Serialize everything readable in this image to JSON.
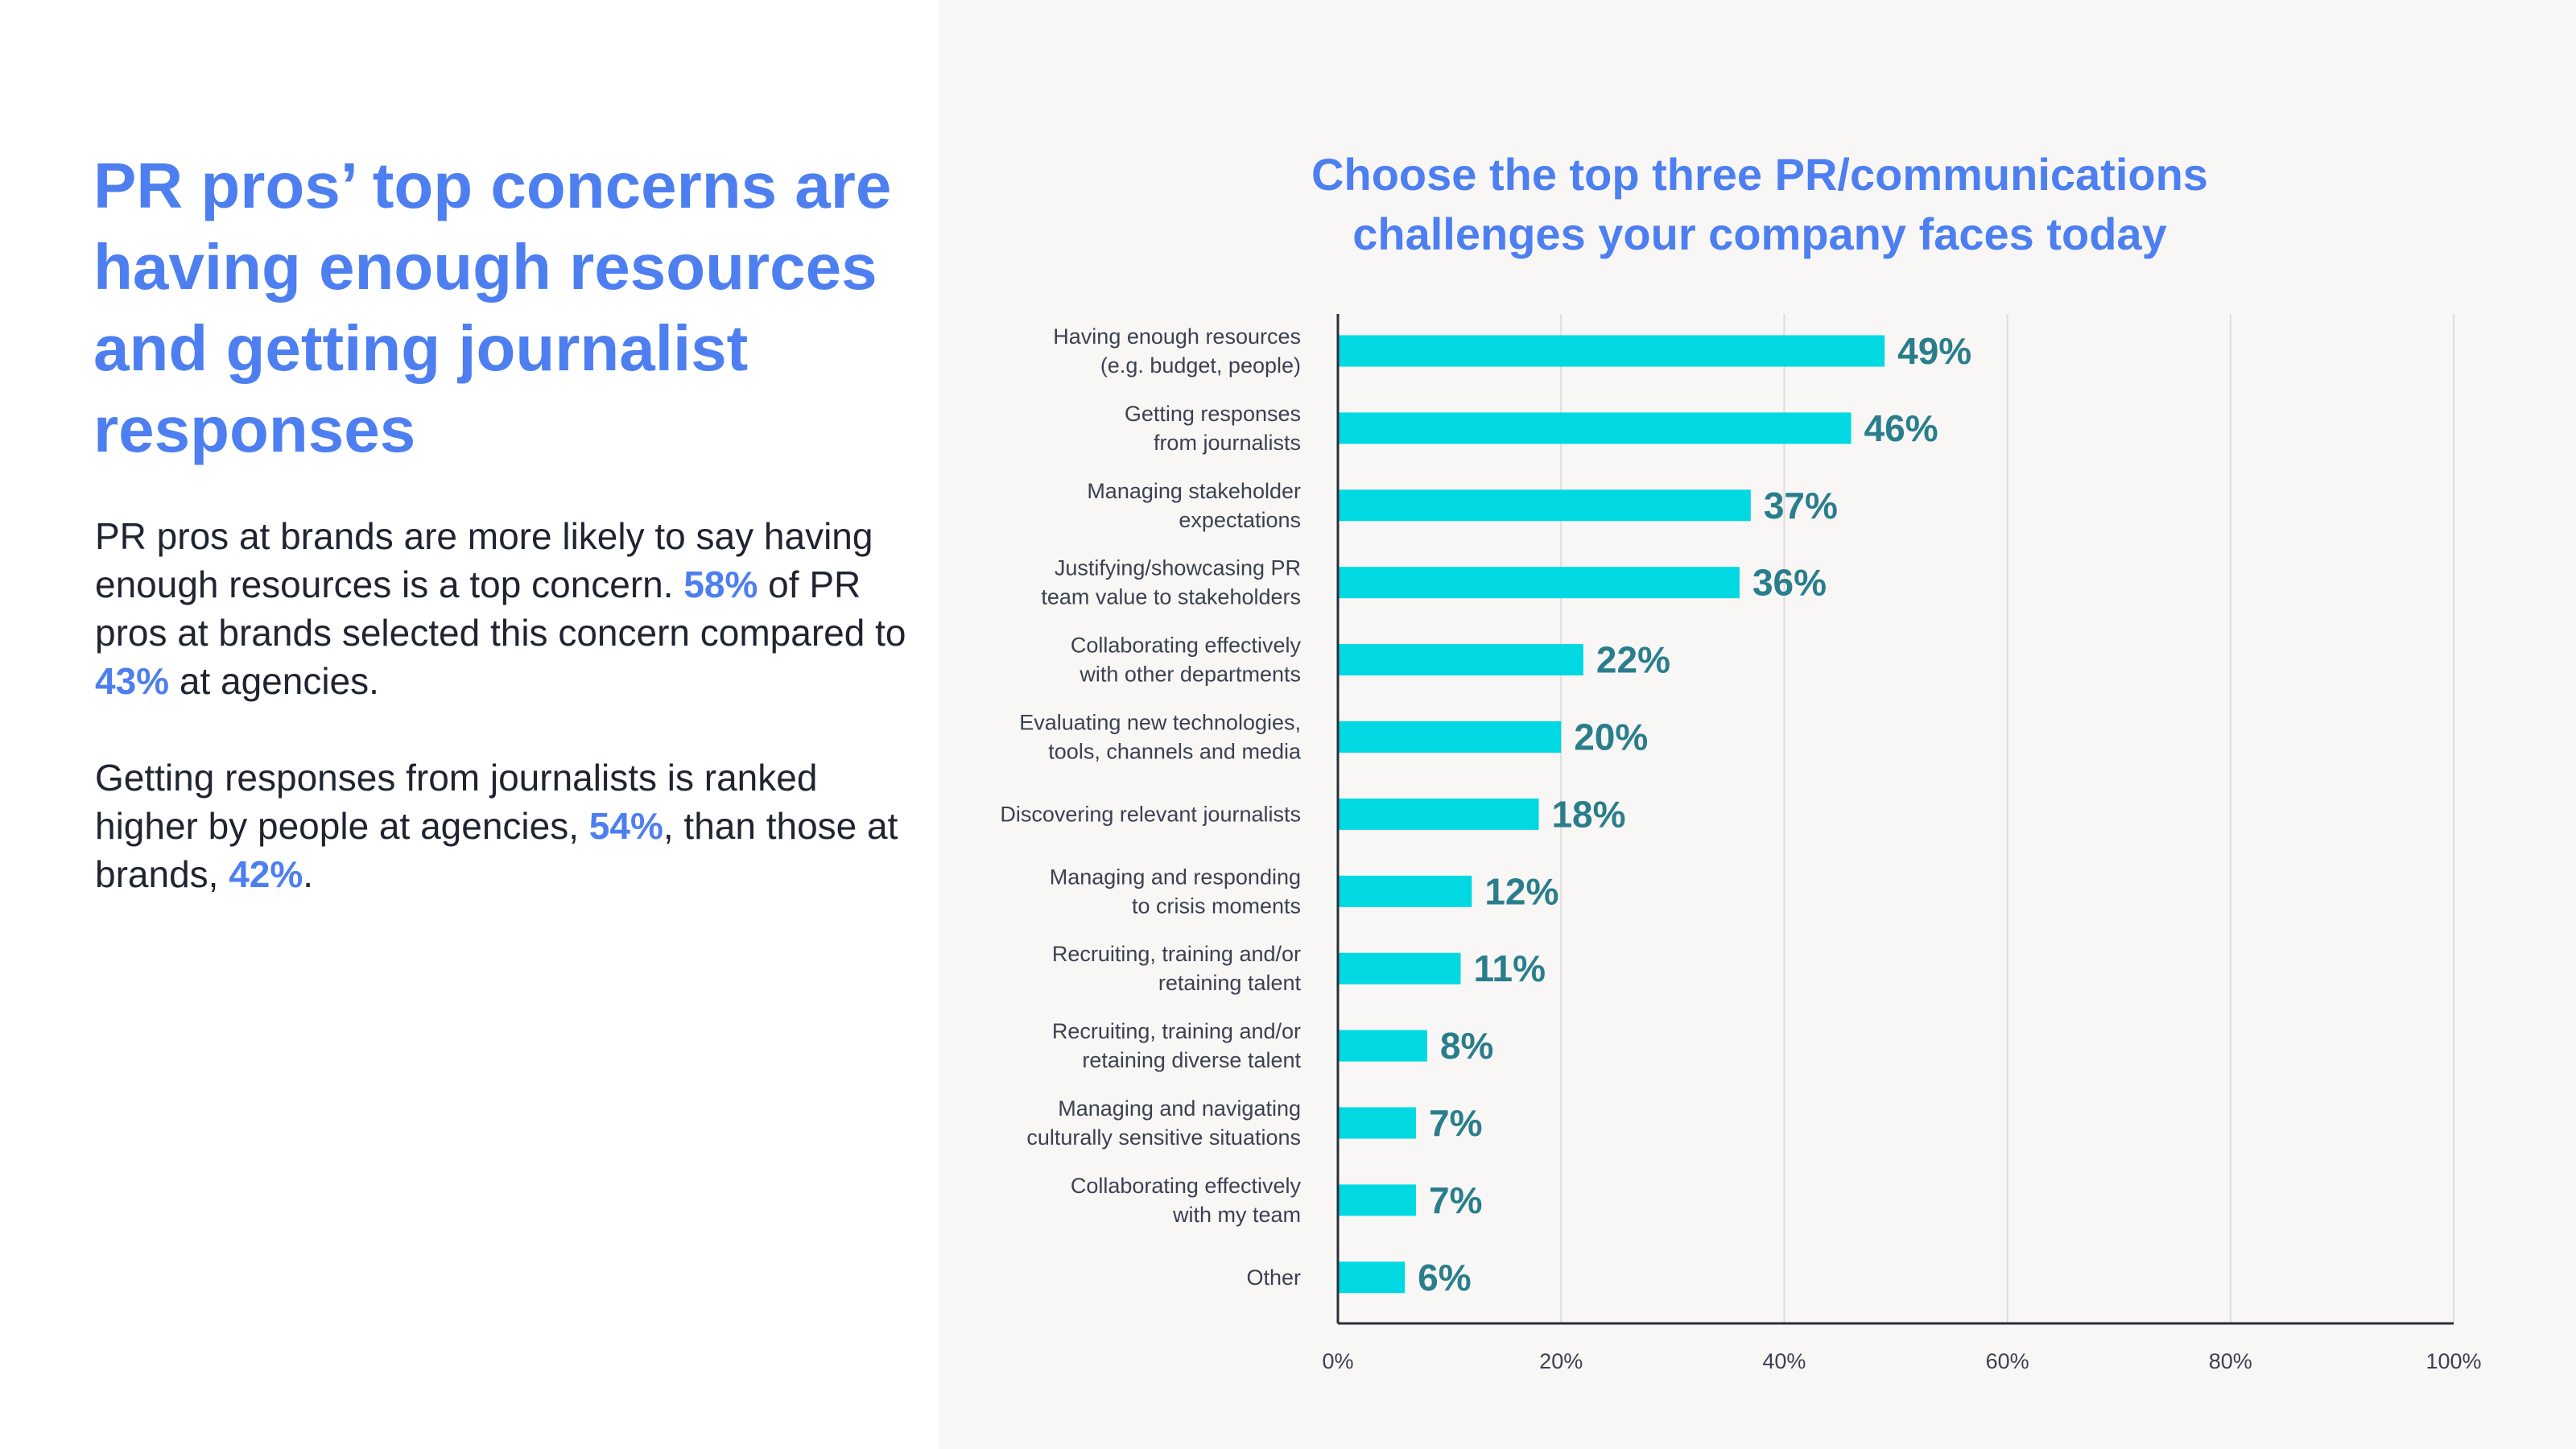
{
  "left": {
    "headline": "PR pros’ top concerns are having enough resources and getting journalist responses",
    "paragraph1": {
      "text_a": "PR pros at brands are more likely to say having enough resources is a top concern. ",
      "stat_a": "58%",
      "text_b": " of PR pros at brands selected this concern compared to ",
      "stat_b": "43%",
      "text_c": " at agencies."
    },
    "paragraph2": {
      "text_a": "Getting responses from journalists is ranked higher by people at agencies, ",
      "stat_a": "54%",
      "text_b": ", than those at brands, ",
      "stat_b": "42%",
      "text_c": "."
    }
  },
  "colors": {
    "accent": "#4d7ff0",
    "bar": "#00d9e1",
    "value_label": "#2a7e8c",
    "right_background": "#f8f7f6"
  },
  "chart_data": {
    "type": "bar",
    "orientation": "horizontal",
    "title": "Choose the top three PR/communications challenges your company faces today",
    "categories": [
      [
        "Having enough resources",
        "(e.g. budget, people)"
      ],
      [
        "Getting responses",
        "from journalists"
      ],
      [
        "Managing stakeholder",
        "expectations"
      ],
      [
        "Justifying/showcasing PR",
        "team value to stakeholders"
      ],
      [
        "Collaborating effectively",
        "with other departments"
      ],
      [
        "Evaluating new technologies,",
        "tools, channels and media"
      ],
      [
        "Discovering relevant journalists"
      ],
      [
        "Managing and responding",
        "to crisis moments"
      ],
      [
        "Recruiting, training and/or",
        "retaining talent"
      ],
      [
        "Recruiting, training and/or",
        "retaining diverse talent"
      ],
      [
        "Managing and navigating",
        "culturally sensitive situations"
      ],
      [
        "Collaborating effectively",
        "with my team"
      ],
      [
        "Other"
      ]
    ],
    "values": [
      49,
      46,
      37,
      36,
      22,
      20,
      18,
      12,
      11,
      8,
      7,
      7,
      6
    ],
    "value_labels": [
      "49%",
      "46%",
      "37%",
      "36%",
      "22%",
      "20%",
      "18%",
      "12%",
      "11%",
      "8%",
      "7%",
      "7%",
      "6%"
    ],
    "xlim": [
      0,
      100
    ],
    "x_ticks": [
      0,
      20,
      40,
      60,
      80,
      100
    ],
    "x_tick_labels": [
      "0%",
      "20%",
      "40%",
      "60%",
      "80%",
      "100%"
    ],
    "grid": true
  }
}
